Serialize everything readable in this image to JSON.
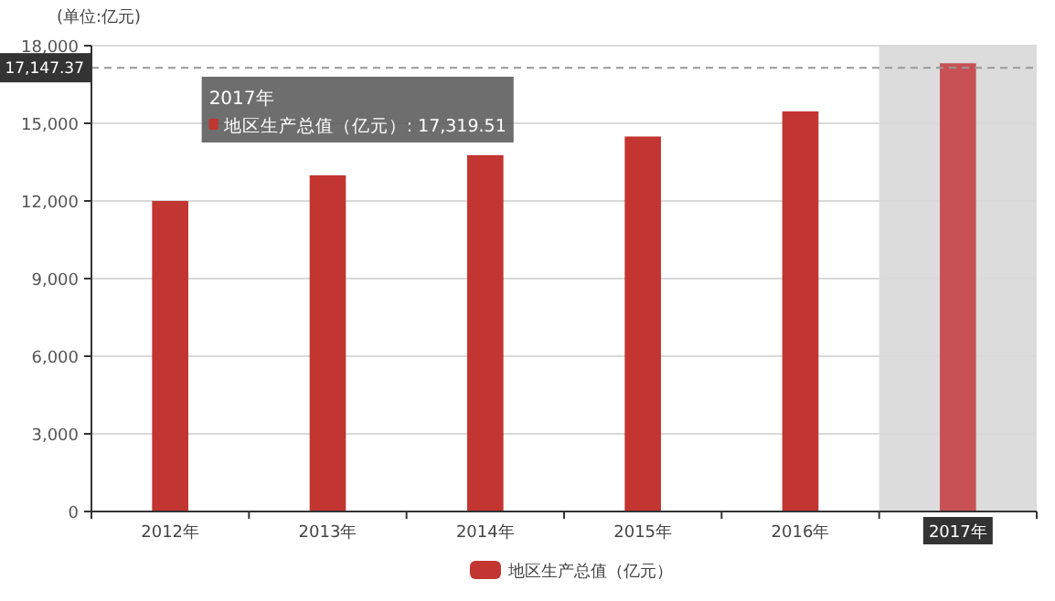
{
  "chart_data": {
    "type": "bar",
    "ylabel": "(单位:亿元)",
    "categories": [
      "2012年",
      "2013年",
      "2014年",
      "2015年",
      "2016年",
      "2017年"
    ],
    "series": [
      {
        "name": "地区生产总值（亿元）",
        "color": "#c23531",
        "colors": [
          "#c23531",
          "#c23531",
          "#c23531",
          "#c23531",
          "#c23531",
          "#c75155"
        ],
        "values": [
          12000,
          12990,
          13770,
          14490,
          15460,
          17319.51
        ]
      }
    ],
    "ylim": [
      0,
      18000
    ],
    "yticks": [
      {
        "value": 0,
        "label": "0"
      },
      {
        "value": 3000,
        "label": "3,000"
      },
      {
        "value": 6000,
        "label": "6,000"
      },
      {
        "value": 9000,
        "label": "9,000"
      },
      {
        "value": 12000,
        "label": "12,000"
      },
      {
        "value": 15000,
        "label": "15,000"
      },
      {
        "value": 18000,
        "label": "18,000"
      }
    ],
    "grid": "y",
    "legend": "bottom",
    "ref_lines": [
      {
        "axis": "y",
        "value": 17147.37,
        "label": "17,147.37",
        "line_style": "dashed",
        "color": "#999999"
      }
    ],
    "bands": [
      {
        "axis": "x",
        "from": "2017年",
        "to": "2017年",
        "color": "#dcdcdc"
      }
    ],
    "annotations": [
      "2017年",
      "地区生产总值（亿元）: 17,319.51"
    ]
  }
}
